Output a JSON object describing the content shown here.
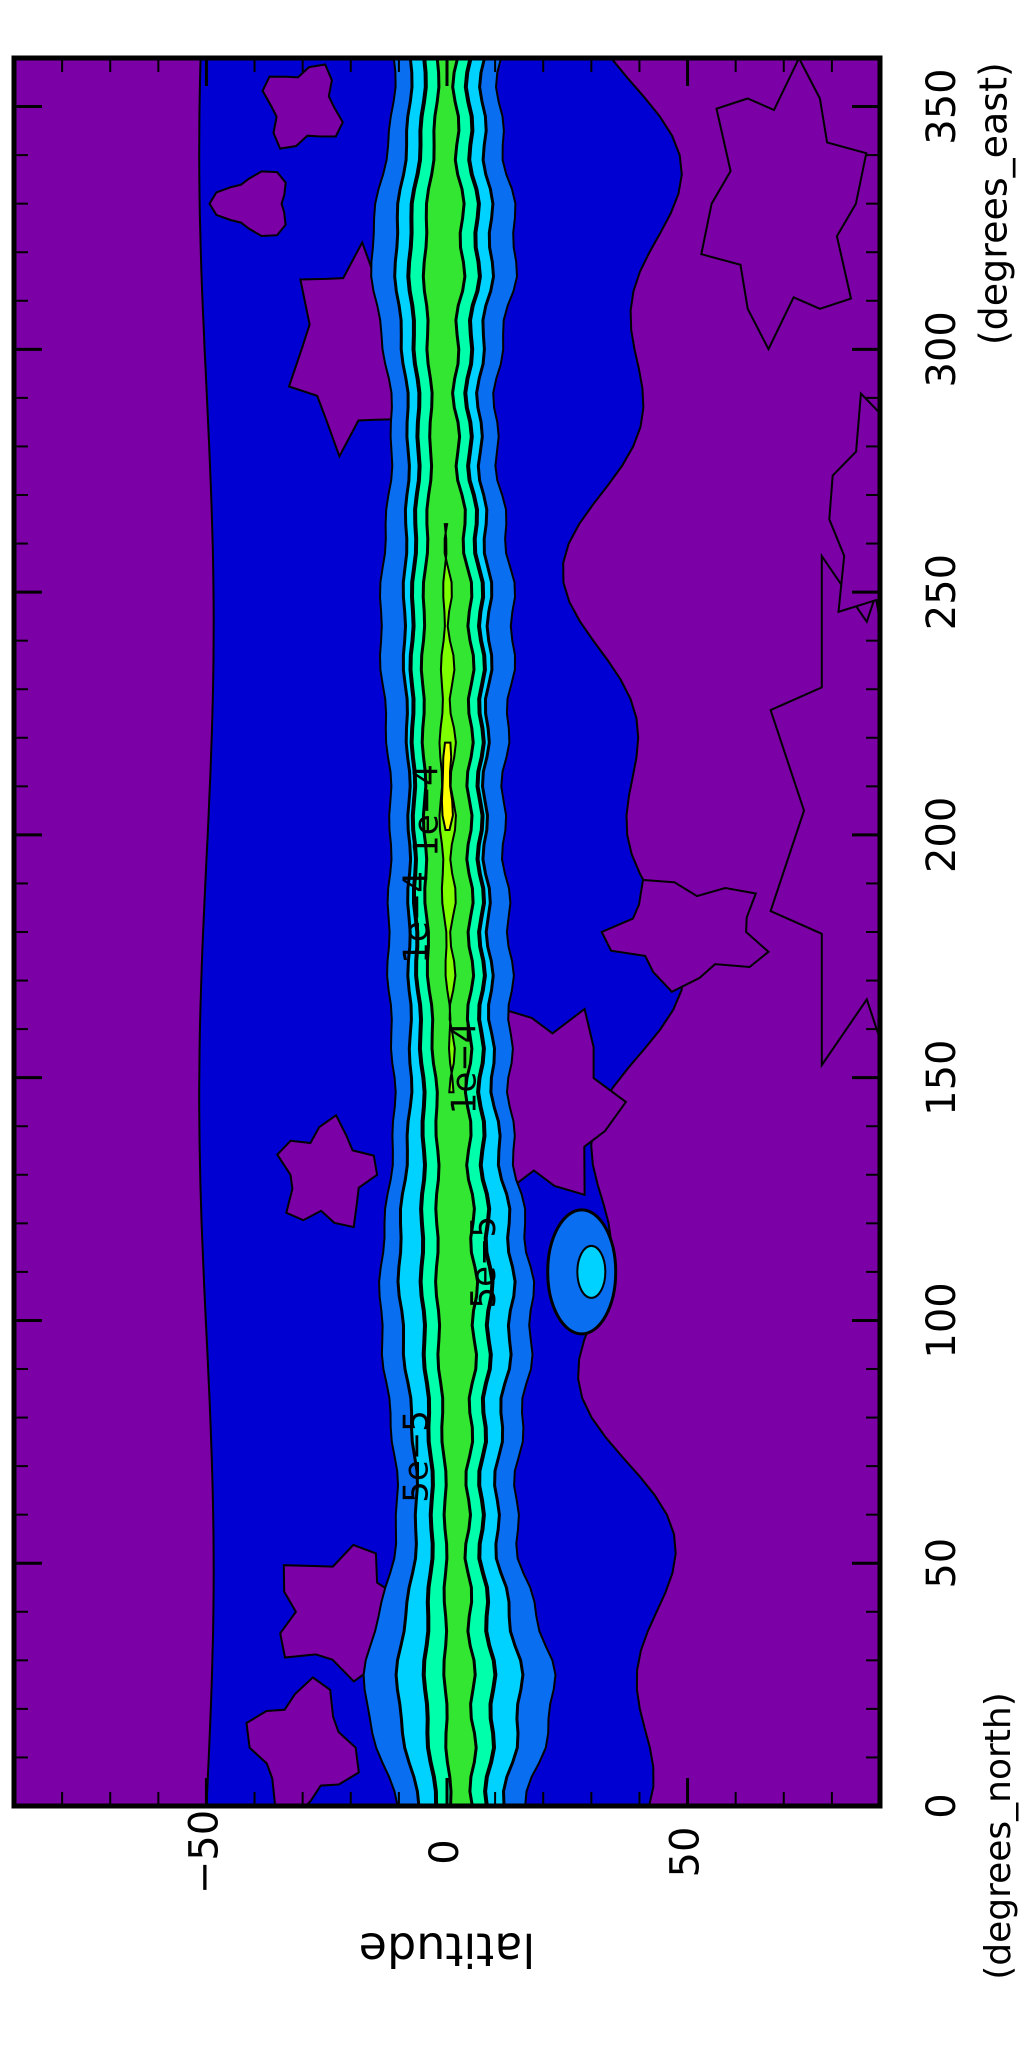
{
  "chart_data": {
    "type": "heatmap",
    "title": "",
    "orientation": "rotated-90-clockwise",
    "xlabel": "(degrees_east)",
    "ylabel": "latitude",
    "ylabel_unit": "(degrees_north)",
    "xlim": [
      0,
      360
    ],
    "ylim": [
      -90,
      90
    ],
    "x_ticks": [
      0,
      50,
      100,
      150,
      200,
      250,
      300,
      350
    ],
    "x_tick_labels": [
      "0",
      "50",
      "100",
      "150",
      "200",
      "250",
      "300",
      "350"
    ],
    "y_ticks": [
      -50,
      0,
      50
    ],
    "y_tick_labels": [
      "−50",
      "0",
      "50"
    ],
    "legend": "none",
    "grid": false,
    "colors": {
      "background_level": "#7b00a5",
      "level_1": "#0000d2",
      "level_2": "#0a6ef0",
      "level_3": "#00d2ff",
      "level_4": "#00ffaa",
      "level_5": "#32e632",
      "level_6": "#7dff00",
      "level_7": "#ffff00"
    },
    "contour_labels": [
      {
        "text": "5e−5",
        "lon": 112,
        "lat": 8
      },
      {
        "text": "1e−4",
        "lon": 152,
        "lat": 4
      },
      {
        "text": "5e−5",
        "lon": 72,
        "lat": -6
      },
      {
        "text": "1e−4",
        "lon": 183,
        "lat": -6
      },
      {
        "text": "1e−4",
        "lon": 205,
        "lat": -4
      }
    ],
    "band": {
      "center_lat": [
        [
          0,
          3
        ],
        [
          50,
          2
        ],
        [
          100,
          2
        ],
        [
          150,
          1
        ],
        [
          200,
          0
        ],
        [
          250,
          0
        ],
        [
          300,
          -1
        ],
        [
          360,
          0
        ]
      ],
      "max_lon_range": [
        195,
        225
      ],
      "max_lat": 0
    },
    "lower_boundary_lat": -50,
    "upper_boundary_lat": 45
  }
}
